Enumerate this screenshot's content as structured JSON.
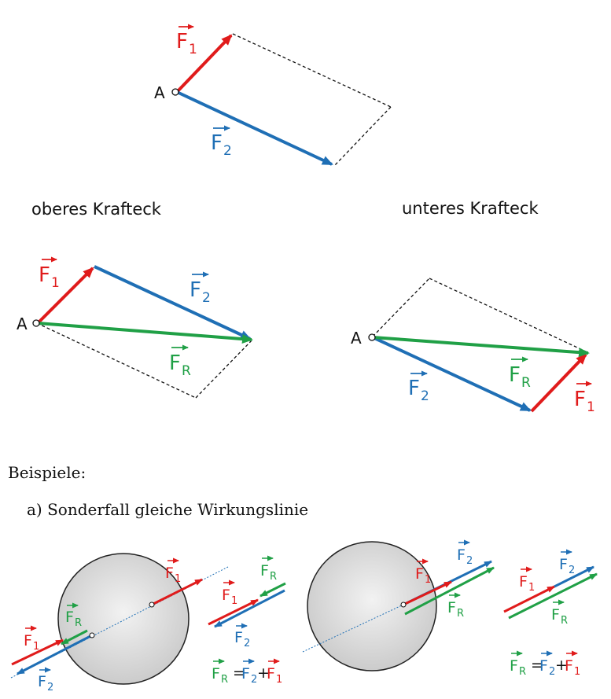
{
  "labels": {
    "point_a": "A",
    "f1_main": "F",
    "f1_sub": "1",
    "f2_main": "F",
    "f2_sub": "2",
    "fr_main": "F",
    "fr_sub": "R",
    "heading_upper": "oberes Krafteck",
    "heading_lower": "unteres Krafteck",
    "examples_title": "Beispiele:",
    "case_a": "a) Sonderfall gleiche Wirkungslinie",
    "equals": "=",
    "plus": "+"
  },
  "colors": {
    "force_1": "#e01b1b",
    "force_2": "#1f6fb5",
    "resultant": "#20a046",
    "body_fill": "#d9d9d9",
    "dashed_line": "#111111"
  }
}
